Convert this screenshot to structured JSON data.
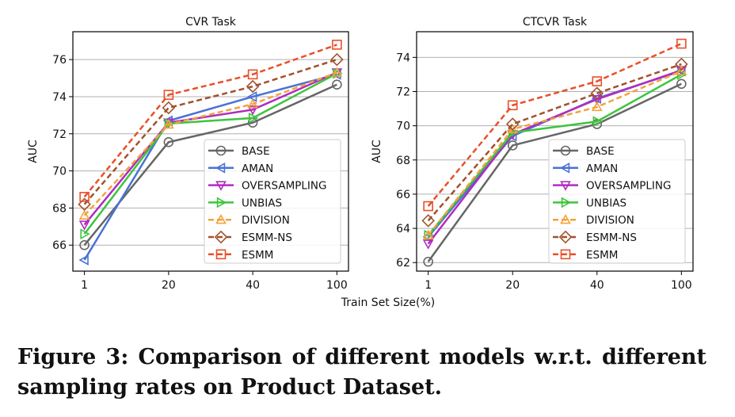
{
  "shared_xlabel": "Train Set Size(%)",
  "caption": "Figure 3: Comparison of different models w.r.t. different sampling rates on Product Dataset.",
  "series_styles": [
    {
      "name": "BASE",
      "color": "#666666",
      "marker": "circle",
      "dash": false
    },
    {
      "name": "AMAN",
      "color": "#4a72d6",
      "marker": "triangle-left",
      "dash": false
    },
    {
      "name": "OVERSAMPLING",
      "color": "#b02cc0",
      "marker": "triangle-down",
      "dash": false
    },
    {
      "name": "UNBIAS",
      "color": "#3ec43e",
      "marker": "triangle-right",
      "dash": false
    },
    {
      "name": "DIVISION",
      "color": "#f5a23a",
      "marker": "triangle-up",
      "dash": true
    },
    {
      "name": "ESMM-NS",
      "color": "#a0522d",
      "marker": "diamond",
      "dash": true
    },
    {
      "name": "ESMM",
      "color": "#e8502a",
      "marker": "square",
      "dash": true
    }
  ],
  "chart_data": [
    {
      "type": "line",
      "title": "CVR Task",
      "xlabel": "",
      "ylabel": "AUC",
      "categories": [
        "1",
        "20",
        "40",
        "100"
      ],
      "ylim": [
        64.6,
        77.5
      ],
      "yticks": [
        66,
        68,
        70,
        72,
        74,
        76
      ],
      "grid": "horizontal",
      "legend": "bottom-right",
      "series": [
        {
          "name": "BASE",
          "values": [
            66.0,
            71.55,
            72.6,
            74.65
          ]
        },
        {
          "name": "AMAN",
          "values": [
            65.2,
            72.7,
            74.0,
            75.2
          ]
        },
        {
          "name": "OVERSAMPLING",
          "values": [
            67.1,
            72.6,
            73.3,
            75.3
          ]
        },
        {
          "name": "UNBIAS",
          "values": [
            66.6,
            72.55,
            72.85,
            75.25
          ]
        },
        {
          "name": "DIVISION",
          "values": [
            67.6,
            72.5,
            73.6,
            75.3
          ]
        },
        {
          "name": "ESMM-NS",
          "values": [
            68.2,
            73.4,
            74.55,
            76.0
          ]
        },
        {
          "name": "ESMM",
          "values": [
            68.6,
            74.1,
            75.2,
            76.8
          ]
        }
      ]
    },
    {
      "type": "line",
      "title": "CTCVR Task",
      "xlabel": "",
      "ylabel": "AUC",
      "categories": [
        "1",
        "20",
        "40",
        "100"
      ],
      "ylim": [
        61.5,
        75.5
      ],
      "yticks": [
        62,
        64,
        66,
        68,
        70,
        72,
        74
      ],
      "grid": "horizontal",
      "legend": "bottom-right",
      "series": [
        {
          "name": "BASE",
          "values": [
            62.05,
            68.85,
            70.1,
            72.45
          ]
        },
        {
          "name": "AMAN",
          "values": [
            63.5,
            69.4,
            71.6,
            73.2
          ]
        },
        {
          "name": "OVERSAMPLING",
          "values": [
            63.1,
            69.5,
            71.55,
            73.25
          ]
        },
        {
          "name": "UNBIAS",
          "values": [
            63.6,
            69.6,
            70.25,
            73.0
          ]
        },
        {
          "name": "DIVISION",
          "values": [
            63.6,
            69.8,
            71.1,
            73.2
          ]
        },
        {
          "name": "ESMM-NS",
          "values": [
            64.45,
            70.1,
            71.9,
            73.6
          ]
        },
        {
          "name": "ESMM",
          "values": [
            65.3,
            71.2,
            72.6,
            74.8
          ]
        }
      ]
    }
  ]
}
